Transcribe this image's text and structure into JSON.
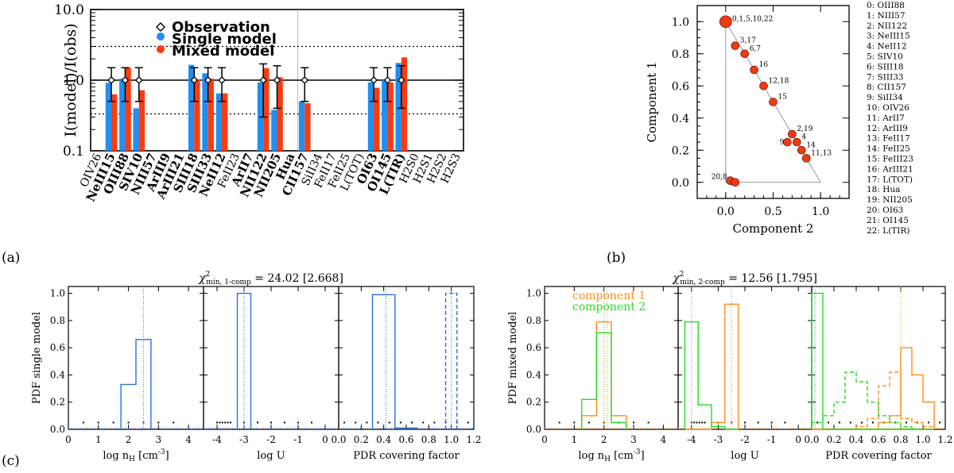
{
  "chart_data": [
    {
      "id": "a",
      "type": "bar",
      "panel_label": "(a)",
      "title": "",
      "ylabel": "I(model)/I(obs)",
      "xlabel": "",
      "yscale": "log",
      "ylim": [
        0.1,
        10.0
      ],
      "yticks": [
        "0.1",
        "1.0",
        "10.0"
      ],
      "legend": [
        "Observation",
        "Single model",
        "Mixed model"
      ],
      "colors": {
        "single": "#1f8ff0",
        "mixed": "#ff3a10",
        "observation": "#000000"
      },
      "reference_lines": [
        1.0,
        3.0,
        0.333
      ],
      "categories": [
        "OIV26",
        "NeIII15",
        "OIII88",
        "SIV10",
        "NIII57",
        "ArIII9",
        "ArIII21",
        "SIII18",
        "SIII33",
        "NeII12",
        "FeII23",
        "ArII7",
        "NII122",
        "NII205",
        "Hua",
        "CII157",
        "SiII34",
        "FeII17",
        "FeII25",
        "L(TOT)",
        "OI63",
        "OI145",
        "L(TIR)",
        "H2S0",
        "H2S1",
        "H2S2",
        "H2S3"
      ],
      "bold": [
        false,
        true,
        true,
        true,
        true,
        true,
        true,
        true,
        true,
        true,
        false,
        true,
        true,
        true,
        true,
        true,
        false,
        false,
        false,
        false,
        true,
        true,
        true,
        false,
        false,
        false,
        false
      ],
      "series": [
        {
          "name": "Single model",
          "values": [
            null,
            0.92,
            1.05,
            0.4,
            null,
            null,
            null,
            1.65,
            1.25,
            0.65,
            null,
            null,
            0.93,
            0.38,
            null,
            0.5,
            null,
            null,
            null,
            null,
            0.93,
            1.0,
            1.75,
            null,
            null,
            null,
            null
          ]
        },
        {
          "name": "Mixed model",
          "values": [
            null,
            0.63,
            1.5,
            0.72,
            null,
            null,
            null,
            1.03,
            1.05,
            0.65,
            null,
            null,
            1.48,
            1.1,
            null,
            0.47,
            null,
            null,
            null,
            null,
            0.78,
            0.93,
            2.1,
            null,
            null,
            null,
            null
          ]
        }
      ],
      "observation_errors": [
        {
          "category": "NeIII15",
          "lo": 0.5,
          "hi": 1.5
        },
        {
          "category": "OIII88",
          "lo": 0.5,
          "hi": 1.5
        },
        {
          "category": "SIV10",
          "lo": 0.5,
          "hi": 1.5
        },
        {
          "category": "SIII18",
          "lo": 0.5,
          "hi": 1.5
        },
        {
          "category": "SIII33",
          "lo": 0.5,
          "hi": 1.5
        },
        {
          "category": "NeII12",
          "lo": 0.5,
          "hi": 1.5
        },
        {
          "category": "NII122",
          "lo": 0.3,
          "hi": 1.7
        },
        {
          "category": "NII205",
          "lo": 0.4,
          "hi": 1.6
        },
        {
          "category": "CII157",
          "lo": 0.5,
          "hi": 1.5
        },
        {
          "category": "OI63",
          "lo": 0.5,
          "hi": 1.5
        },
        {
          "category": "OI145",
          "lo": 0.5,
          "hi": 1.5
        },
        {
          "category": "L(TIR)",
          "lo": 0.4,
          "hi": 1.6
        }
      ]
    },
    {
      "id": "b",
      "type": "scatter",
      "panel_label": "(b)",
      "xlabel": "Component 2",
      "ylabel": "Component 1",
      "xlim": [
        -0.3,
        1.3
      ],
      "ylim": [
        -0.1,
        1.1
      ],
      "xticks": [
        "0.0",
        "0.5",
        "1.0"
      ],
      "yticks": [
        "0.0",
        "0.2",
        "0.4",
        "0.6",
        "0.8",
        "1.0"
      ],
      "point_color": "#ee3a10",
      "points": [
        {
          "x": 0.0,
          "y": 1.0,
          "label": "0,1,5,10,22",
          "big": true
        },
        {
          "x": 0.1,
          "y": 0.85,
          "label": "3,17"
        },
        {
          "x": 0.2,
          "y": 0.8,
          "label": "6,7"
        },
        {
          "x": 0.3,
          "y": 0.7,
          "label": "16"
        },
        {
          "x": 0.4,
          "y": 0.6,
          "label": "12,18"
        },
        {
          "x": 0.5,
          "y": 0.5,
          "label": "15"
        },
        {
          "x": 0.7,
          "y": 0.3,
          "label": "2,19"
        },
        {
          "x": 0.65,
          "y": 0.25,
          "label": "9"
        },
        {
          "x": 0.75,
          "y": 0.25,
          "label": "4"
        },
        {
          "x": 0.8,
          "y": 0.2,
          "label": "14"
        },
        {
          "x": 0.85,
          "y": 0.15,
          "label": "11,13"
        },
        {
          "x": 0.05,
          "y": 0.01,
          "label": "20,8"
        },
        {
          "x": 0.1,
          "y": 0.0,
          "label": ""
        }
      ],
      "legend_list": [
        "0: OIII88",
        "1: NIII57",
        "2: NII122",
        "3: NeIII15",
        "4: NeII12",
        "5: SIV10",
        "6: SIII18",
        "7: SIII33",
        "8: CII157",
        "9: SiII34",
        "10: OIV26",
        "11:   ArII7",
        "12: ArIII9",
        "13: FeII17",
        "14: FeII25",
        "15: FeIII23",
        "16: ArIII21",
        "17: L(TOT)",
        "18:   Hua",
        "19: NII205",
        "20: OI63",
        "21: OI145",
        "22: L(TIR)"
      ]
    },
    {
      "id": "c1",
      "type": "histogram",
      "panel_label": "(c)",
      "title_prefix": "χ",
      "title_sup": "2",
      "title_sub": "min, 1-comp",
      "title_value": "= 24.02 [2.668]",
      "ylabel": "PDF single model",
      "yticks": [
        "0.0",
        "0.2",
        "0.4",
        "0.6",
        "0.8",
        "1.0"
      ],
      "subplots": [
        {
          "xlabel": "log n",
          "xlabel_sub": "H",
          "xlabel_unit": " [cm",
          "xlabel_sup": "-3",
          "xlabel_end": "]",
          "xlim": [
            0,
            4.5
          ],
          "xticks": [
            "0",
            "1",
            "2",
            "3",
            "4"
          ],
          "edges": [
            1.75,
            2.25,
            2.75
          ],
          "series": [
            {
              "name": "single",
              "color": "#2a6fe8",
              "dash": false,
              "values": [
                0.33,
                0.66
              ]
            }
          ],
          "vlines": [
            {
              "x": 2.5,
              "color": "#2a6fe8"
            }
          ],
          "dots": [
            0.5,
            1.0,
            1.5,
            2.0,
            2.5,
            3.0,
            3.5
          ]
        },
        {
          "xlabel": "log U",
          "xlim": [
            -4.5,
            0.5
          ],
          "xticks": [
            "-4",
            "-3",
            "-2",
            "-1",
            "0"
          ],
          "edges": [
            -3.25,
            -2.75
          ],
          "series": [
            {
              "name": "single",
              "color": "#2a6fe8",
              "dash": false,
              "values": [
                1.0
              ]
            }
          ],
          "vlines": [
            {
              "x": -3.0,
              "color": "#2a6fe8"
            }
          ],
          "dots": [
            -4.0,
            -3.9,
            -3.8,
            -3.7,
            -3.6,
            -3.5,
            -3.0,
            -2.5,
            -2.0,
            -1.5,
            -1.0,
            -0.5
          ]
        },
        {
          "xlabel": "PDR covering factor",
          "xlim": [
            0,
            1.2
          ],
          "xticks": [
            "0.0",
            "0.2",
            "0.4",
            "0.6",
            "0.8",
            "1.0",
            "1.2"
          ],
          "edges": [
            0.3,
            0.5,
            0.7
          ],
          "series": [
            {
              "name": "single",
              "color": "#2a6fe8",
              "dash": false,
              "values": [
                0.99,
                0.01
              ]
            },
            {
              "name": "single-dash",
              "color": "#2a6fe8",
              "dash": true,
              "edges": [
                0.95,
                1.05
              ],
              "values": [
                1.0
              ]
            }
          ],
          "vlines": [
            {
              "x": 0.42,
              "color": "#2a6fe8"
            },
            {
              "x": 1.0,
              "color": "#2a6fe8"
            }
          ],
          "dots": [
            0.05,
            0.15,
            0.25,
            0.35,
            0.45,
            0.55,
            0.65,
            0.75,
            0.85,
            0.95,
            1.05,
            1.15
          ]
        }
      ]
    },
    {
      "id": "c2",
      "type": "histogram",
      "panel_label": "",
      "title_prefix": "χ",
      "title_sup": "2",
      "title_sub": "min, 2-comp",
      "title_value": "= 12.56 [1.795]",
      "ylabel": "PDF mixed model",
      "legend": [
        {
          "name": "component 1",
          "color": "#ff8c1a"
        },
        {
          "name": "component 2",
          "color": "#22dd22"
        }
      ],
      "yticks": [
        "0.0",
        "0.2",
        "0.4",
        "0.6",
        "0.8",
        "1.0"
      ],
      "subplots": [
        {
          "xlabel": "log n",
          "xlabel_sub": "H",
          "xlabel_unit": " [cm",
          "xlabel_sup": "-3",
          "xlabel_end": "]",
          "xlim": [
            0,
            4.5
          ],
          "xticks": [
            "0",
            "1",
            "2",
            "3",
            "4"
          ],
          "edges": [
            1.25,
            1.75,
            2.25,
            2.75
          ],
          "series": [
            {
              "name": "component 1",
              "color": "#ff8c1a",
              "dash": false,
              "values": [
                0.1,
                0.79,
                0.1
              ]
            },
            {
              "name": "component 2",
              "color": "#22dd22",
              "dash": false,
              "values": [
                0.22,
                0.71,
                0.05
              ]
            }
          ],
          "vlines": [
            {
              "x": 2.0,
              "color": "#22dd22"
            },
            {
              "x": 2.1,
              "color": "#ff8c1a"
            }
          ],
          "dots": [
            0.5,
            1.0,
            1.5,
            2.0,
            2.5,
            3.0,
            3.5
          ]
        },
        {
          "xlabel": "log U",
          "xlim": [
            -4.5,
            0.5
          ],
          "xticks": [
            "-4",
            "-3",
            "-2",
            "-1",
            "0"
          ],
          "edges": [
            -4.25,
            -3.75,
            -3.25,
            -2.75,
            -2.25
          ],
          "series": [
            {
              "name": "component 1",
              "color": "#ff8c1a",
              "dash": false,
              "values": [
                0,
                0,
                0.05,
                0.92
              ]
            },
            {
              "name": "component 2",
              "color": "#22dd22",
              "dash": false,
              "values": [
                0.79,
                0.18,
                0.02,
                0
              ]
            }
          ],
          "vlines": [
            {
              "x": -4.0,
              "color": "#22dd22"
            },
            {
              "x": -2.5,
              "color": "#ff8c1a"
            }
          ],
          "dots": [
            -4.0,
            -3.9,
            -3.8,
            -3.7,
            -3.6,
            -3.5,
            -3.0,
            -2.5,
            -2.0,
            -1.5,
            -1.0,
            -0.5
          ]
        },
        {
          "xlabel": "PDR covering factor",
          "xlim": [
            0,
            1.2
          ],
          "xticks": [
            "0.0",
            "0.2",
            "0.4",
            "0.6",
            "0.8",
            "1.0",
            "1.2"
          ],
          "edges": [
            0,
            0.1,
            0.2,
            0.3,
            0.4,
            0.5,
            0.6,
            0.7,
            0.8,
            0.9,
            1.0,
            1.1
          ],
          "series": [
            {
              "name": "component 1",
              "color": "#ff8c1a",
              "dash": false,
              "values": [
                0,
                0,
                0,
                0,
                0,
                0,
                0.05,
                0.1,
                0.6,
                0.4,
                0.2
              ]
            },
            {
              "name": "component 1 PDR2",
              "color": "#ff8c1a",
              "dash": true,
              "values": [
                0,
                0,
                0,
                0,
                0.02,
                0.08,
                0.32,
                0.42,
                0.08,
                0.05,
                0.02
              ]
            },
            {
              "name": "component 2",
              "color": "#22dd22",
              "dash": false,
              "values": [
                1.0,
                0,
                0,
                0,
                0,
                0,
                0,
                0,
                0,
                0,
                0
              ]
            },
            {
              "name": "component 2 PDR2",
              "color": "#22dd22",
              "dash": true,
              "values": [
                0.05,
                0.1,
                0.2,
                0.42,
                0.35,
                0.2,
                0.1,
                0.05,
                0.02,
                0,
                0
              ]
            }
          ],
          "vlines": [
            {
              "x": 0.03,
              "color": "#22dd22"
            },
            {
              "x": 0.8,
              "color": "#ff8c1a"
            }
          ],
          "dots": [
            0.05,
            0.15,
            0.25,
            0.35,
            0.45,
            0.55,
            0.65,
            0.75,
            0.85,
            0.95,
            1.05,
            1.15
          ]
        }
      ]
    }
  ]
}
